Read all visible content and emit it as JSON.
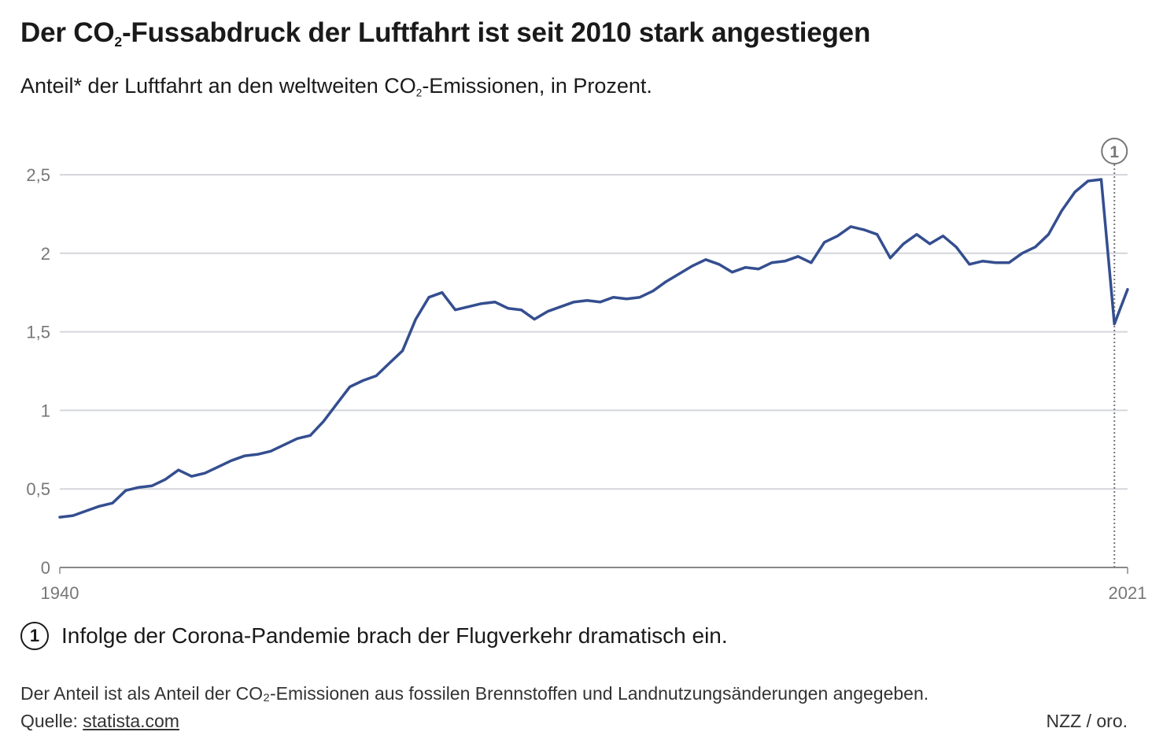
{
  "title": {
    "pre": "Der CO",
    "sub": "2",
    "post": "-Fussabdruck der Luftfahrt ist seit 2010 stark angestiegen"
  },
  "subtitle": {
    "pre": "Anteil* der Luftfahrt an den weltweiten CO",
    "sub": "2",
    "post": "-Emissionen, in Prozent."
  },
  "annotation": {
    "number": "1",
    "text": "Infolge der Corona-Pandemie brach der Flugverkehr dramatisch ein.",
    "year": 2020
  },
  "footnote": "Der Anteil ist als Anteil der CO₂-Emissionen aus fossilen Brennstoffen und Landnutzungsänderungen angegeben.",
  "source": {
    "label": "Quelle:",
    "link": "statista.com"
  },
  "credit": "NZZ / oro.",
  "colors": {
    "line": "#344e8f",
    "grid": "#d4d6dc",
    "annotation": "#777777"
  },
  "chart_data": {
    "type": "line",
    "xlim": [
      1940,
      2021
    ],
    "ylim": [
      0,
      2.5
    ],
    "x_tick_labels": [
      "1940",
      "2021"
    ],
    "y_ticks": [
      0,
      0.5,
      1,
      1.5,
      2,
      2.5
    ],
    "y_tick_labels": [
      "0",
      "0,5",
      "1",
      "1,5",
      "2",
      "2,5"
    ],
    "grid": true,
    "x": [
      1940,
      1941,
      1942,
      1943,
      1944,
      1945,
      1946,
      1947,
      1948,
      1949,
      1950,
      1951,
      1952,
      1953,
      1954,
      1955,
      1956,
      1957,
      1958,
      1959,
      1960,
      1961,
      1962,
      1963,
      1964,
      1965,
      1966,
      1967,
      1968,
      1969,
      1970,
      1971,
      1972,
      1973,
      1974,
      1975,
      1976,
      1977,
      1978,
      1979,
      1980,
      1981,
      1982,
      1983,
      1984,
      1985,
      1986,
      1987,
      1988,
      1989,
      1990,
      1991,
      1992,
      1993,
      1994,
      1995,
      1996,
      1997,
      1998,
      1999,
      2000,
      2001,
      2002,
      2003,
      2004,
      2005,
      2006,
      2007,
      2008,
      2009,
      2010,
      2011,
      2012,
      2013,
      2014,
      2015,
      2016,
      2017,
      2018,
      2019,
      2020,
      2021
    ],
    "y": [
      0.32,
      0.33,
      0.36,
      0.39,
      0.41,
      0.49,
      0.51,
      0.52,
      0.56,
      0.62,
      0.58,
      0.6,
      0.64,
      0.68,
      0.71,
      0.72,
      0.74,
      0.78,
      0.82,
      0.84,
      0.93,
      1.04,
      1.15,
      1.19,
      1.22,
      1.3,
      1.38,
      1.58,
      1.72,
      1.75,
      1.64,
      1.66,
      1.68,
      1.69,
      1.65,
      1.64,
      1.58,
      1.63,
      1.66,
      1.69,
      1.7,
      1.69,
      1.72,
      1.71,
      1.72,
      1.76,
      1.82,
      1.87,
      1.92,
      1.96,
      1.93,
      1.88,
      1.91,
      1.9,
      1.94,
      1.95,
      1.98,
      1.94,
      2.07,
      2.11,
      2.17,
      2.15,
      2.12,
      1.97,
      2.06,
      2.12,
      2.06,
      2.11,
      2.04,
      1.93,
      1.95,
      1.94,
      1.94,
      2.0,
      2.04,
      2.12,
      2.27,
      2.39,
      2.46,
      2.47,
      1.55,
      1.77
    ]
  }
}
